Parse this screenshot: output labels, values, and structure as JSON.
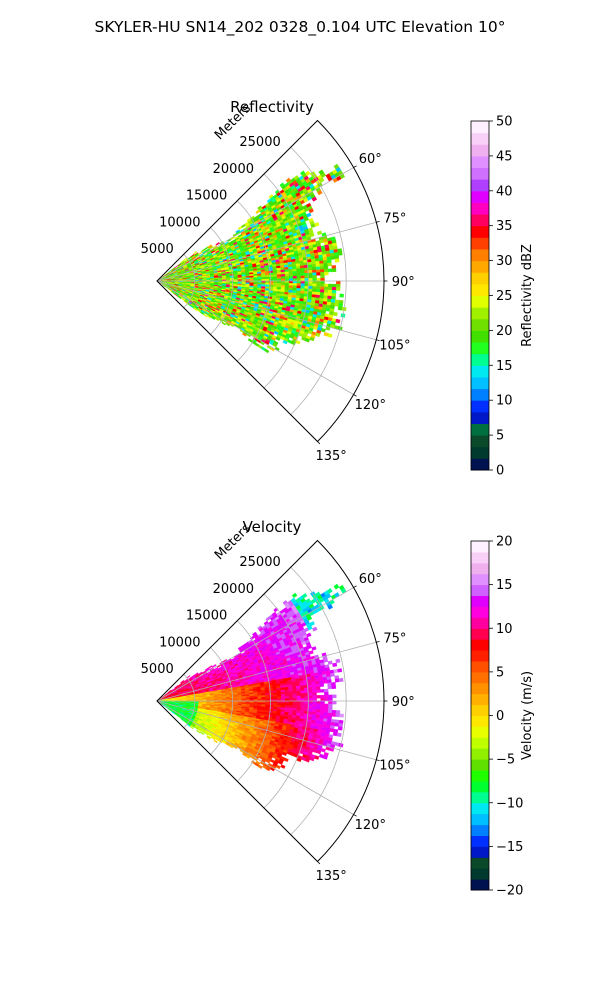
{
  "suptitle": "SKYLER-HU  SN14_202  0328_0.104 UTC Elevation 10°",
  "palettes": {
    "reflectivity": [
      "#00124f",
      "#003a2e",
      "#0a4a2a",
      "#007040",
      "#0018c8",
      "#0030ff",
      "#0080ff",
      "#00c0ff",
      "#00e8f0",
      "#00ff90",
      "#20ff20",
      "#40e000",
      "#70e000",
      "#a0f000",
      "#e0ff00",
      "#ffe800",
      "#ffd000",
      "#ffa800",
      "#ff8000",
      "#ff4000",
      "#ff0000",
      "#ff0060",
      "#ff00c0",
      "#e000ff",
      "#b040ff",
      "#d070ff",
      "#e090ff",
      "#f0b0f0",
      "#f8d0f8",
      "#fff0ff"
    ],
    "velocity": [
      "#00124f",
      "#003a2e",
      "#0a4a2a",
      "#0018c8",
      "#0030ff",
      "#0080ff",
      "#00c0ff",
      "#00e8f0",
      "#00ff90",
      "#00ff30",
      "#20ff00",
      "#60e000",
      "#90f000",
      "#c0ff00",
      "#e8ff00",
      "#ffe800",
      "#ffd000",
      "#ffb000",
      "#ff9000",
      "#ff7000",
      "#ff5000",
      "#ff2000",
      "#ff0000",
      "#ff0050",
      "#ff00a0",
      "#ff00e0",
      "#e000ff",
      "#d060ff",
      "#e090ff",
      "#f0b0f0",
      "#f8d0f8",
      "#fff0ff"
    ]
  },
  "chart_data": [
    {
      "type": "heatmap",
      "subtype": "polar-sector (PPI radar)",
      "title": "Reflectivity",
      "radial_label": "Meters",
      "radial_ticks": [
        5000,
        10000,
        15000,
        20000,
        25000
      ],
      "radial_tick_labels": [
        "5000",
        "10000",
        "15000",
        "20000",
        "25000"
      ],
      "r_max": 30000,
      "theta_ticks_deg": [
        60,
        75,
        90,
        105,
        120,
        135
      ],
      "theta_tick_labels": [
        "60°",
        "75°",
        "90°",
        "105°",
        "120°",
        "135°"
      ],
      "theta_range_deg": [
        45,
        135
      ],
      "grid": true,
      "colorbar": {
        "label": "Reflectivity dBZ",
        "range": [
          0,
          50
        ],
        "ticks": [
          0,
          5,
          10,
          15,
          20,
          25,
          30,
          35,
          40,
          45,
          50
        ],
        "tick_labels": [
          "0",
          "5",
          "10",
          "15",
          "20",
          "25",
          "30",
          "35",
          "40",
          "45",
          "50"
        ]
      },
      "data_summary": "Radar echoes cover roughly 0–22 km range across 60°–125° azimuth; values mostly 15–30 dBZ with embedded 30–37 dBZ cores near 7–17 km."
    },
    {
      "type": "heatmap",
      "subtype": "polar-sector (PPI radar)",
      "title": "Velocity",
      "radial_label": "Meters",
      "radial_ticks": [
        5000,
        10000,
        15000,
        20000,
        25000
      ],
      "radial_tick_labels": [
        "5000",
        "10000",
        "15000",
        "20000",
        "25000"
      ],
      "r_max": 30000,
      "theta_ticks_deg": [
        60,
        75,
        90,
        105,
        120,
        135
      ],
      "theta_tick_labels": [
        "60°",
        "75°",
        "90°",
        "105°",
        "120°",
        "135°"
      ],
      "theta_range_deg": [
        45,
        135
      ],
      "grid": true,
      "colorbar": {
        "label": "Velocity (m/s)",
        "range": [
          -20,
          20
        ],
        "ticks": [
          -20,
          -15,
          -10,
          -5,
          0,
          5,
          10,
          15,
          20
        ],
        "tick_labels": [
          "−20",
          "−15",
          "−10",
          "−5",
          "0",
          "5",
          "10",
          "15",
          "20"
        ]
      },
      "data_summary": "Velocities range from about −10 m/s (green/cyan, near radar at larger azimuths) to about +14 m/s (magenta, far range at 65°–80°); 0–10 m/s dominates central region."
    }
  ]
}
